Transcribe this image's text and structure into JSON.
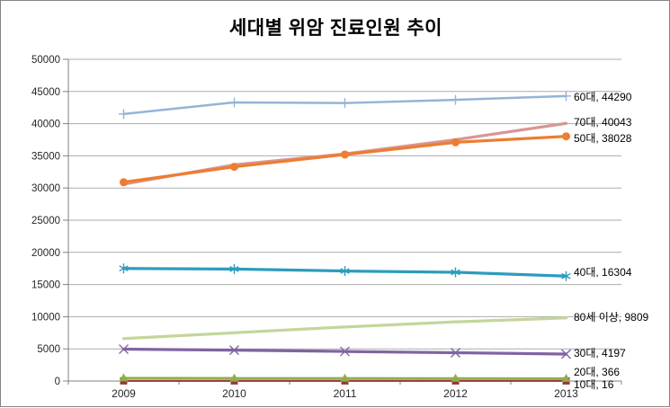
{
  "chart_data": {
    "type": "line",
    "title": "세대별 위암 진료인원 추이",
    "xlabel": "",
    "ylabel": "",
    "categories": [
      "2009",
      "2010",
      "2011",
      "2012",
      "2013"
    ],
    "ylim": [
      0,
      50000
    ],
    "ytick_step": 5000,
    "yticks": [
      "0",
      "5000",
      "10000",
      "15000",
      "20000",
      "25000",
      "30000",
      "35000",
      "40000",
      "45000",
      "50000"
    ],
    "grid": true,
    "legend": "none - series labeled at line ends",
    "series": [
      {
        "name": "60대",
        "values": [
          41500,
          43300,
          43200,
          43700,
          44290
        ],
        "color": "#95B3D7",
        "marker": "plus",
        "line_width": 2.5,
        "end_label": "60대, 44290",
        "label_y": 107
      },
      {
        "name": "70대",
        "values": [
          30600,
          33600,
          35300,
          37500,
          40043
        ],
        "color": "#D99694",
        "marker": "none",
        "line_width": 3.25,
        "end_label": "70대, 40043",
        "label_y": 135
      },
      {
        "name": "50대",
        "values": [
          30900,
          33300,
          35200,
          37100,
          38028
        ],
        "color": "#ED7D31",
        "marker": "circle",
        "line_width": 3.25,
        "end_label": "50대, 38028",
        "label_y": 153
      },
      {
        "name": "40대",
        "values": [
          17500,
          17400,
          17100,
          16900,
          16304
        ],
        "color": "#2D9CBE",
        "marker": "asterisk",
        "line_width": 3.25,
        "end_label": "40대, 16304",
        "label_y": 302
      },
      {
        "name": "80세 이상",
        "values": [
          6600,
          7500,
          8400,
          9200,
          9809
        ],
        "color": "#C3D69B",
        "marker": "none",
        "line_width": 3.25,
        "end_label": "80세 이상, 9809",
        "label_y": 352
      },
      {
        "name": "30대",
        "values": [
          4950,
          4800,
          4600,
          4400,
          4197
        ],
        "color": "#8064A2",
        "marker": "x",
        "line_width": 3.25,
        "end_label": "30대, 4197",
        "label_y": 392
      },
      {
        "name": "20대",
        "values": [
          430,
          410,
          395,
          380,
          366
        ],
        "color": "#8FAE4B",
        "marker": "triangle",
        "line_width": 3.0,
        "end_label": "20대, 366",
        "label_y": 413
      },
      {
        "name": "10대",
        "values": [
          22,
          20,
          18,
          17,
          16
        ],
        "color": "#953735",
        "marker": "square",
        "line_width": 2.0,
        "end_label": "10대, 16",
        "label_y": 427
      }
    ]
  },
  "colors": {
    "background": "#FFFFFF",
    "chart_border": "#848484",
    "gridline": "#ABABAB",
    "axis_line": "#808080",
    "tick_text": "#262626",
    "label_text": "#000000"
  }
}
